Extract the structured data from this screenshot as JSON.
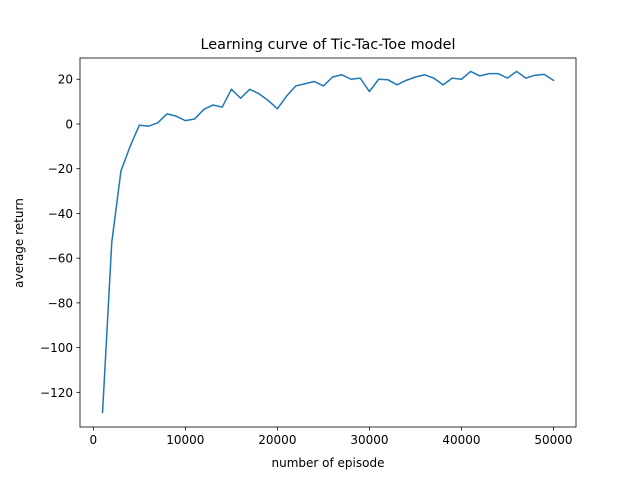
{
  "chart_data": {
    "type": "line",
    "title": "Learning curve of Tic-Tac-Toe model",
    "xlabel": "number of episode",
    "ylabel": "average return",
    "xlim": [
      -1450,
      52450
    ],
    "ylim": [
      -135.5,
      29.5
    ],
    "xticks": [
      0,
      10000,
      20000,
      30000,
      40000,
      50000
    ],
    "xtick_labels": [
      "0",
      "10000",
      "20000",
      "30000",
      "40000",
      "50000"
    ],
    "yticks": [
      -120,
      -100,
      -80,
      -60,
      -40,
      -20,
      0,
      20
    ],
    "ytick_labels": [
      "−120",
      "−100",
      "−80",
      "−60",
      "−40",
      "−20",
      "0",
      "20"
    ],
    "grid": false,
    "legend": false,
    "series": [
      {
        "color": "#1f77b4",
        "x": [
          1000,
          2000,
          3000,
          4000,
          5000,
          6000,
          7000,
          8000,
          9000,
          10000,
          11000,
          12000,
          13000,
          14000,
          15000,
          16000,
          17000,
          18000,
          19000,
          20000,
          21000,
          22000,
          23000,
          24000,
          25000,
          26000,
          27000,
          28000,
          29000,
          30000,
          31000,
          32000,
          33000,
          34000,
          35000,
          36000,
          37000,
          38000,
          39000,
          40000,
          41000,
          42000,
          43000,
          44000,
          45000,
          46000,
          47000,
          48000,
          49000,
          50000
        ],
        "y": [
          -129,
          -53,
          -21,
          -10,
          -0.5,
          -1,
          0.5,
          4.5,
          3.5,
          1.5,
          2.2,
          6.5,
          8.5,
          7.5,
          15.5,
          11.5,
          15.5,
          13.5,
          10.5,
          6.8,
          12.5,
          17,
          18,
          19,
          17,
          21,
          22,
          20,
          20.5,
          14.5,
          20,
          19.8,
          17.5,
          19.5,
          21,
          22,
          20.5,
          17.5,
          20.5,
          20,
          23.5,
          21.5,
          22.5,
          22.5,
          20.5,
          23.5,
          20.5,
          21.8,
          22.2,
          19.5
        ]
      }
    ]
  }
}
